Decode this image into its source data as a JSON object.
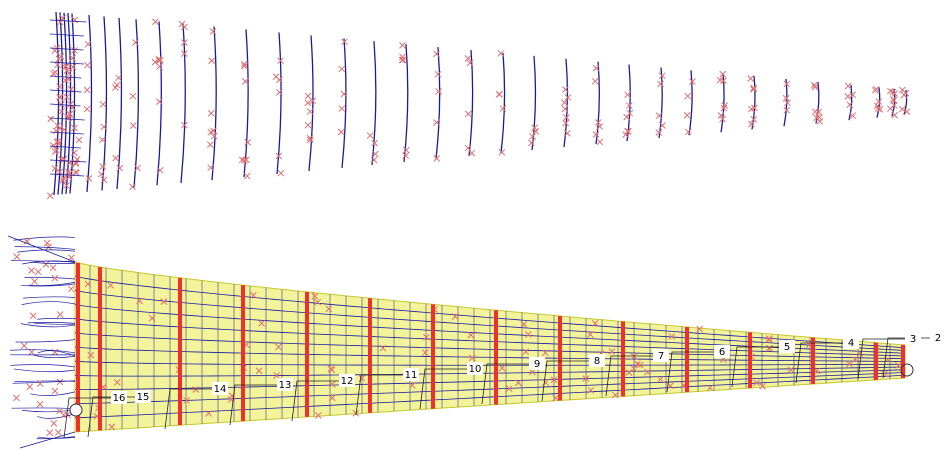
{
  "section_labels": [
    "2",
    "3",
    "4",
    "5",
    "6",
    "7",
    "8",
    "9",
    "10",
    "11",
    "12",
    "13",
    "14",
    "15",
    "16"
  ]
}
